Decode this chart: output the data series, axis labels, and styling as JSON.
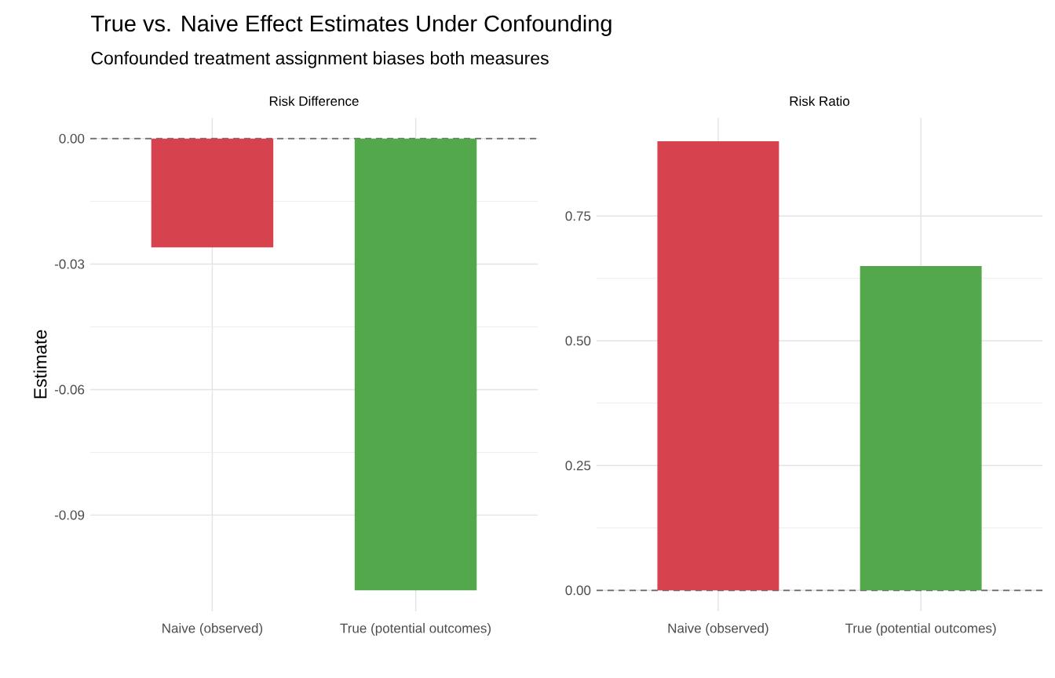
{
  "chart_data": [
    {
      "type": "other",
      "title": "True vs. Naive Effect Estimates Under Confounding",
      "subtitle": "Confounded treatment assignment biases both measures"
    },
    {
      "type": "bar",
      "title": "Risk Difference",
      "ylabel": "Estimate",
      "categories": [
        "Naive (observed)",
        "True (potential outcomes)"
      ],
      "values": [
        -0.026,
        -0.108
      ],
      "colors": [
        "#d7424f",
        "#53a84c"
      ],
      "ylim": [
        -0.113,
        0.005
      ],
      "yticks": [
        {
          "value": 0,
          "label": "0.00"
        },
        {
          "value": -0.03,
          "label": "-0.03"
        },
        {
          "value": -0.06,
          "label": "-0.06"
        },
        {
          "value": -0.09,
          "label": "-0.09"
        }
      ],
      "grid": true,
      "ref_lines": [
        {
          "axis": "y",
          "value": 0,
          "color": "#666666",
          "line_style": "dashed"
        }
      ]
    },
    {
      "type": "bar",
      "title": "Risk Ratio",
      "categories": [
        "Naive (observed)",
        "True (potential outcomes)"
      ],
      "values": [
        0.9,
        0.65
      ],
      "colors": [
        "#d7424f",
        "#53a84c"
      ],
      "ylim": [
        -0.042,
        0.947
      ],
      "yticks": [
        {
          "value": 0,
          "label": "0.00"
        },
        {
          "value": 0.25,
          "label": "0.25"
        },
        {
          "value": 0.5,
          "label": "0.50"
        },
        {
          "value": 0.75,
          "label": "0.75"
        }
      ],
      "grid": true,
      "ref_lines": [
        {
          "axis": "y",
          "value": 0,
          "color": "#666666",
          "line_style": "dashed"
        }
      ]
    }
  ]
}
